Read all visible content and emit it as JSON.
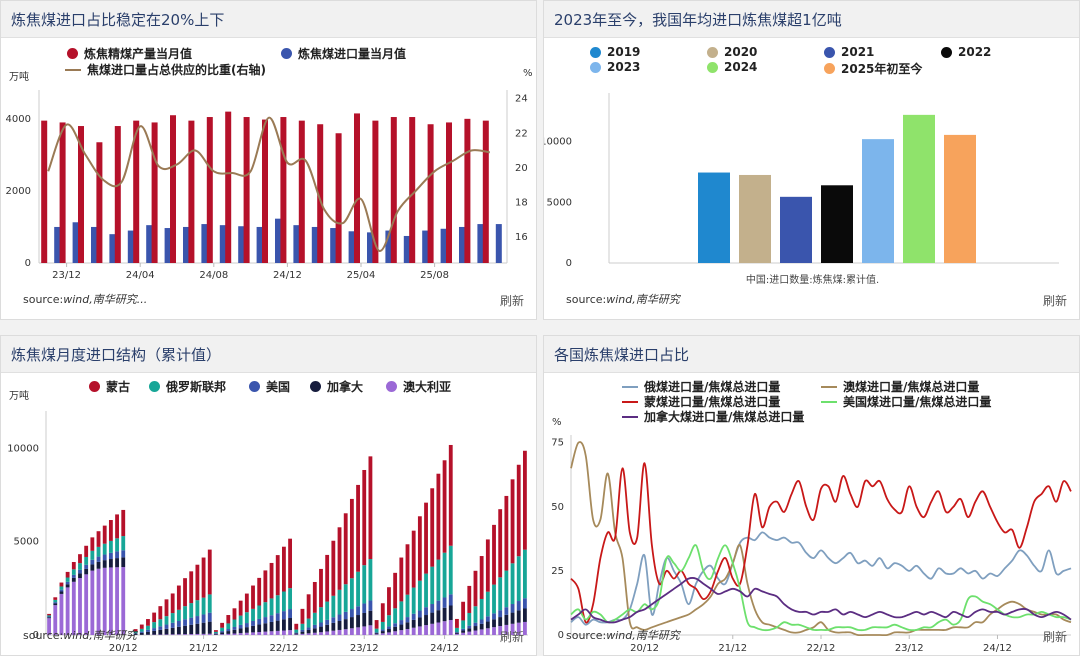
{
  "panels": [
    {
      "title": "炼焦煤进口占比稳定在20%上下",
      "source_label": "source:",
      "source": "wind,南华研究...",
      "refresh": "刷新",
      "unit_left": "万吨",
      "unit_right": "%"
    },
    {
      "title": "2023年至今，我国年均进口炼焦煤超1亿吨",
      "source_label": "source:",
      "source": "wind,南华研究",
      "refresh": "刷新",
      "note": "中国:进口数量:炼焦煤:累计值."
    },
    {
      "title": "炼焦煤月度进口结构（累计值）",
      "source_label": "source:",
      "source": "wind,南华研究",
      "refresh": "刷新",
      "unit_left": "万吨"
    },
    {
      "title": "各国炼焦煤进口占比",
      "source_label": "source:",
      "source": "wind,南华研究",
      "refresh": "刷新",
      "unit_left": "%"
    }
  ],
  "chart_data": [
    {
      "type": "bar",
      "title": "炼焦煤进口占比稳定在20%上下",
      "legend": [
        "炼焦精煤产量当月值",
        "炼焦煤进口量当月值",
        "焦煤进口量占总供应的比重(右轴)"
      ],
      "x_tick_labels": [
        "23/12",
        "24/04",
        "24/08",
        "24/12",
        "25/04",
        "25/08"
      ],
      "ylim_left": [
        0,
        4800
      ],
      "y_ticks_left": [
        0,
        2000,
        4000
      ],
      "ylim_right": [
        14.5,
        24.5
      ],
      "y_ticks_right": [
        16,
        18,
        20,
        22,
        24
      ],
      "colors": [
        "#b5112a",
        "#3a55ad",
        "#9a7a55"
      ],
      "series": [
        {
          "name": "炼焦精煤产量当月值",
          "type": "bar",
          "values": [
            3950,
            3900,
            3800,
            3350,
            3800,
            3950,
            3900,
            4100,
            3950,
            4050,
            4200,
            4050,
            3980,
            4050,
            3950,
            3850,
            3600,
            4150,
            3950,
            4050,
            4050,
            3850,
            3900,
            4000,
            3950
          ]
        },
        {
          "name": "炼焦煤进口量当月值",
          "type": "bar",
          "values": [
            1000,
            1130,
            1000,
            800,
            900,
            1050,
            970,
            1000,
            1080,
            1050,
            1020,
            1000,
            1230,
            1050,
            1000,
            970,
            880,
            850,
            900,
            750,
            900,
            950,
            1000,
            1080,
            1080
          ]
        },
        {
          "name": "焦煤进口量占总供应的比重(右轴)",
          "type": "line",
          "values": [
            19.8,
            22.5,
            20.8,
            19.3,
            19.2,
            22.4,
            20.1,
            20.2,
            21.0,
            19.8,
            19.7,
            19.8,
            22.9,
            20.3,
            20.4,
            17.6,
            16.8,
            18.2,
            15.2,
            17.5,
            18.7,
            19.8,
            20.4,
            21.0,
            20.9
          ]
        }
      ]
    },
    {
      "type": "bar",
      "title": "2023年至今，我国年均进口炼焦煤超1亿吨",
      "categories": [
        "2019",
        "2020",
        "2021",
        "2022",
        "2023",
        "2024",
        "2025年初至今"
      ],
      "values": [
        7450,
        7250,
        5450,
        6400,
        10200,
        12200,
        10550
      ],
      "colors": [
        "#1f88cf",
        "#c3b08c",
        "#3a55ad",
        "#0a0a0a",
        "#7cb5ec",
        "#8fe36b",
        "#f7a35c"
      ],
      "ylim": [
        0,
        14000
      ],
      "y_ticks": [
        0,
        5000,
        10000
      ]
    },
    {
      "type": "bar",
      "title": "炼焦煤月度进口结构（累计值）",
      "stacked": true,
      "x_tick_labels": [
        "20/12",
        "21/12",
        "22/12",
        "23/12",
        "24/12"
      ],
      "ylim": [
        0,
        12000
      ],
      "y_ticks": [
        0,
        5000,
        10000
      ],
      "colors": [
        "#b5112a",
        "#17a697",
        "#3a55ad",
        "#161c3d",
        "#9b69d6"
      ],
      "series": [
        {
          "name": "蒙古",
          "values": [
            80,
            140,
            210,
            300,
            390,
            480,
            600,
            720,
            840,
            970,
            1120,
            1280,
            1400,
            0,
            140,
            230,
            360,
            510,
            700,
            900,
            1050,
            1300,
            1500,
            1700,
            1900,
            2150,
            2400,
            90,
            260,
            450,
            600,
            800,
            1000,
            1250,
            1480,
            1700,
            1900,
            2150,
            2400,
            2650,
            310,
            800,
            1300,
            1650,
            2050,
            2500,
            2950,
            3350,
            3800,
            4250,
            4650,
            5100,
            5500,
            460,
            1000,
            1500,
            1900,
            2350,
            2700,
            3050,
            3450,
            3800,
            4200,
            4600,
            4950,
            5400,
            480,
            1000,
            1450,
            1900,
            2300,
            2800,
            3200,
            3650,
            4000,
            4500,
            4900,
            5300
          ]
        },
        {
          "name": "俄罗斯联邦",
          "values": [
            60,
            120,
            170,
            230,
            300,
            360,
            420,
            480,
            520,
            580,
            640,
            700,
            760,
            0,
            80,
            150,
            220,
            320,
            380,
            450,
            520,
            600,
            700,
            780,
            850,
            900,
            980,
            70,
            180,
            300,
            400,
            500,
            580,
            650,
            720,
            800,
            900,
            960,
            1050,
            1120,
            160,
            330,
            480,
            650,
            820,
            980,
            1150,
            1320,
            1480,
            1650,
            1850,
            2050,
            2220,
            200,
            400,
            600,
            800,
            1000,
            1200,
            1400,
            1600,
            1800,
            2000,
            2200,
            2400,
            2600,
            220,
            450,
            680,
            880,
            1100,
            1320,
            1540,
            1760,
            1960,
            2180,
            2400,
            2600
          ]
        },
        {
          "name": "美国",
          "values": [
            40,
            70,
            100,
            130,
            160,
            190,
            220,
            250,
            280,
            300,
            330,
            360,
            380,
            0,
            40,
            70,
            110,
            150,
            190,
            230,
            270,
            310,
            350,
            380,
            410,
            440,
            480,
            30,
            70,
            110,
            150,
            190,
            220,
            260,
            300,
            330,
            360,
            400,
            440,
            480,
            40,
            90,
            130,
            180,
            220,
            260,
            300,
            350,
            390,
            430,
            470,
            510,
            550,
            40,
            90,
            140,
            190,
            240,
            280,
            330,
            370,
            420,
            460,
            510,
            550,
            600,
            40,
            90,
            140,
            180,
            230,
            280,
            320,
            370,
            410,
            460,
            500,
            550
          ]
        },
        {
          "name": "加拿大",
          "values": [
            50,
            90,
            130,
            170,
            210,
            250,
            290,
            330,
            370,
            410,
            450,
            490,
            520,
            0,
            50,
            100,
            150,
            200,
            250,
            300,
            350,
            400,
            450,
            500,
            550,
            600,
            650,
            50,
            100,
            150,
            200,
            250,
            300,
            350,
            400,
            450,
            500,
            550,
            600,
            650,
            60,
            120,
            180,
            240,
            300,
            360,
            420,
            480,
            540,
            600,
            660,
            720,
            780,
            60,
            120,
            180,
            240,
            300,
            360,
            420,
            480,
            540,
            600,
            660,
            720,
            780,
            60,
            120,
            180,
            240,
            300,
            360,
            420,
            480,
            540,
            600,
            660,
            720
          ]
        },
        {
          "name": "澳大利亚",
          "values": [
            900,
            1600,
            2200,
            2550,
            2850,
            3050,
            3250,
            3450,
            3550,
            3600,
            3620,
            3630,
            3640,
            0,
            5,
            10,
            15,
            20,
            25,
            30,
            35,
            40,
            45,
            50,
            55,
            60,
            65,
            20,
            40,
            60,
            80,
            100,
            120,
            140,
            160,
            180,
            200,
            220,
            240,
            260,
            30,
            60,
            90,
            120,
            150,
            190,
            230,
            270,
            310,
            360,
            410,
            460,
            520,
            40,
            90,
            140,
            200,
            260,
            320,
            390,
            460,
            530,
            600,
            670,
            740,
            800,
            60,
            120,
            180,
            240,
            300,
            360,
            420,
            480,
            540,
            600,
            660,
            700
          ]
        }
      ]
    },
    {
      "type": "line",
      "title": "各国炼焦煤进口占比",
      "x_tick_labels": [
        "20/12",
        "21/12",
        "22/12",
        "23/12",
        "24/12"
      ],
      "ylim": [
        0,
        78
      ],
      "y_ticks": [
        0,
        25,
        50,
        75
      ],
      "colors": [
        "#7f9fbf",
        "#a68a5b",
        "#c81818",
        "#6de06d",
        "#5b2d82"
      ],
      "series": [
        {
          "name": "俄煤进口量/焦煤总进口量",
          "values": [
            5,
            7,
            4,
            6,
            5,
            5,
            6,
            6,
            10,
            20,
            31,
            8,
            20,
            30,
            25,
            20,
            12,
            20,
            25,
            27,
            22,
            20,
            28,
            36,
            38,
            37,
            40,
            38,
            37,
            38,
            36,
            36,
            32,
            30,
            33,
            30,
            28,
            30,
            32,
            28,
            29,
            27,
            30,
            26,
            28,
            27,
            25,
            27,
            24,
            22,
            26,
            24,
            24,
            26,
            24,
            25,
            22,
            24,
            23,
            26,
            29,
            33,
            31,
            27,
            25,
            33,
            24,
            25,
            26
          ]
        },
        {
          "name": "澳煤进口量/焦煤总进口量",
          "values": [
            65,
            75,
            70,
            45,
            45,
            63,
            40,
            30,
            5,
            3,
            2,
            3,
            4,
            5,
            6,
            7,
            8,
            10,
            12,
            15,
            20,
            22,
            28,
            35,
            20,
            10,
            5,
            4,
            3,
            2,
            1,
            1,
            2,
            3,
            5,
            2,
            1,
            1,
            1,
            0,
            0,
            0,
            0,
            0,
            1,
            1,
            1,
            2,
            2,
            2,
            2,
            2,
            3,
            3,
            3,
            5,
            5,
            8,
            10,
            12,
            13,
            12,
            10,
            9,
            8,
            8,
            8,
            6,
            5
          ]
        },
        {
          "name": "蒙煤进口量/焦煤总进口量",
          "values": [
            22,
            18,
            5,
            12,
            30,
            40,
            38,
            65,
            40,
            38,
            67,
            35,
            20,
            25,
            22,
            25,
            20,
            18,
            14,
            17,
            25,
            30,
            22,
            20,
            35,
            55,
            42,
            50,
            52,
            48,
            55,
            60,
            50,
            45,
            57,
            58,
            52,
            62,
            55,
            50,
            60,
            58,
            60,
            53,
            49,
            48,
            58,
            50,
            46,
            52,
            56,
            48,
            50,
            53,
            46,
            52,
            56,
            50,
            44,
            40,
            41,
            34,
            42,
            52,
            55,
            58,
            52,
            60,
            56
          ]
        },
        {
          "name": "美国煤进口量/焦煤总进口量",
          "values": [
            8,
            10,
            6,
            9,
            8,
            5,
            6,
            8,
            10,
            9,
            12,
            10,
            14,
            30,
            28,
            25,
            30,
            35,
            25,
            22,
            30,
            35,
            28,
            18,
            5,
            3,
            2,
            2,
            3,
            5,
            4,
            4,
            3,
            2,
            2,
            2,
            3,
            3,
            3,
            2,
            2,
            3,
            3,
            3,
            4,
            3,
            2,
            2,
            3,
            3,
            5,
            6,
            4,
            6,
            14,
            15,
            13,
            12,
            10,
            8,
            7,
            7,
            8,
            8,
            9,
            8,
            7,
            7,
            6
          ]
        },
        {
          "name": "加拿大煤进口量/焦煤总进口量",
          "values": [
            6,
            8,
            10,
            7,
            6,
            5,
            5,
            6,
            7,
            9,
            10,
            12,
            14,
            16,
            18,
            20,
            22,
            22,
            20,
            18,
            16,
            17,
            18,
            17,
            15,
            18,
            17,
            16,
            15,
            12,
            10,
            9,
            9,
            8,
            9,
            9,
            10,
            8,
            9,
            8,
            7,
            8,
            9,
            8,
            7,
            7,
            8,
            9,
            8,
            9,
            8,
            7,
            9,
            8,
            7,
            9,
            10,
            9,
            9,
            8,
            9,
            10,
            10,
            8,
            7,
            8,
            9,
            8,
            6
          ]
        }
      ]
    }
  ]
}
